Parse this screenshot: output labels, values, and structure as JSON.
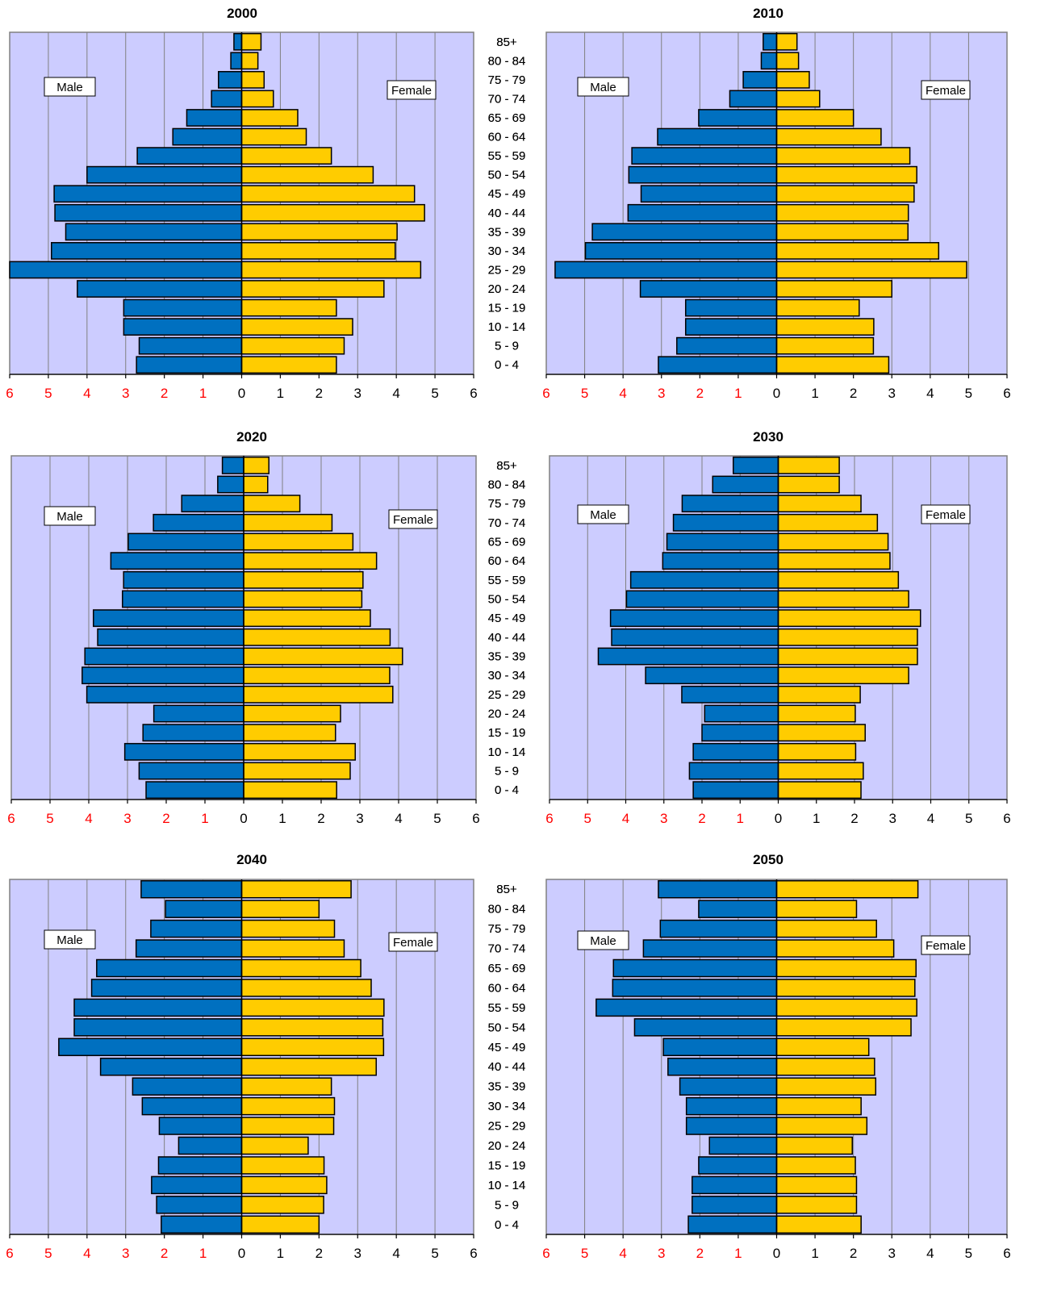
{
  "colors": {
    "plot_bg": "#ccccff",
    "male": "#0070c0",
    "female": "#ffcc00",
    "grid": "#808080",
    "neg_tick": "#ff0000",
    "pos_tick": "#000000"
  },
  "chart_data": [
    {
      "type": "bar",
      "title": "2000",
      "categories": [
        "85+",
        "80 - 84",
        "75 - 79",
        "70 - 74",
        "65 - 69",
        "60 - 64",
        "55 - 59",
        "50 - 54",
        "45 - 49",
        "40 - 44",
        "35 - 39",
        "30 - 34",
        "25 - 29",
        "20 - 24",
        "15 - 19",
        "10 - 14",
        "5 - 9",
        "0 - 4"
      ],
      "series": [
        {
          "name": "Male",
          "values": [
            0.2,
            0.28,
            0.6,
            0.78,
            1.42,
            1.78,
            2.7,
            4.0,
            4.85,
            4.83,
            4.55,
            4.92,
            6.0,
            4.25,
            3.05,
            3.05,
            2.65,
            2.72
          ]
        },
        {
          "name": "Female",
          "values": [
            0.5,
            0.42,
            0.58,
            0.82,
            1.45,
            1.67,
            2.32,
            3.4,
            4.47,
            4.73,
            4.02,
            3.97,
            4.63,
            3.68,
            2.45,
            2.87,
            2.65,
            2.45
          ]
        }
      ],
      "xlim": [
        -6,
        6
      ],
      "xticks": [
        "6",
        "5",
        "4",
        "3",
        "2",
        "1",
        "0",
        "1",
        "2",
        "3",
        "4",
        "5",
        "6"
      ],
      "grid": true,
      "legend": {
        "male": "Male",
        "female": "Female"
      }
    },
    {
      "type": "bar",
      "title": "2010",
      "categories": [
        "85+",
        "80 - 84",
        "75 - 79",
        "70 - 74",
        "65 - 69",
        "60 - 64",
        "55 - 59",
        "50 - 54",
        "45 - 49",
        "40 - 44",
        "35 - 39",
        "30 - 34",
        "25 - 29",
        "20 - 24",
        "15 - 19",
        "10 - 14",
        "5 - 9",
        "0 - 4"
      ],
      "series": [
        {
          "name": "Male",
          "values": [
            0.35,
            0.4,
            0.87,
            1.22,
            2.03,
            3.1,
            3.77,
            3.85,
            3.53,
            3.87,
            4.8,
            4.98,
            5.77,
            3.55,
            2.37,
            2.37,
            2.6,
            3.08
          ]
        },
        {
          "name": "Female",
          "values": [
            0.53,
            0.57,
            0.85,
            1.12,
            2.0,
            2.72,
            3.47,
            3.65,
            3.58,
            3.43,
            3.42,
            4.22,
            4.95,
            3.0,
            2.15,
            2.53,
            2.52,
            2.92
          ]
        }
      ],
      "xlim": [
        -6,
        6
      ],
      "xticks": [
        "6",
        "5",
        "4",
        "3",
        "2",
        "1",
        "0",
        "1",
        "2",
        "3",
        "4",
        "5",
        "6"
      ],
      "grid": true,
      "legend": {
        "male": "Male",
        "female": "Female"
      }
    },
    {
      "type": "bar",
      "title": "2020",
      "categories": [
        "85+",
        "80 - 84",
        "75 - 79",
        "70 - 74",
        "65 - 69",
        "60 - 64",
        "55 - 59",
        "50 - 54",
        "45 - 49",
        "40 - 44",
        "35 - 39",
        "30 - 34",
        "25 - 29",
        "20 - 24",
        "15 - 19",
        "10 - 14",
        "5 - 9",
        "0 - 4"
      ],
      "series": [
        {
          "name": "Male",
          "values": [
            0.55,
            0.67,
            1.6,
            2.33,
            2.98,
            3.43,
            3.1,
            3.13,
            3.88,
            3.77,
            4.1,
            4.17,
            4.05,
            2.32,
            2.6,
            3.07,
            2.7,
            2.52
          ]
        },
        {
          "name": "Female",
          "values": [
            0.65,
            0.62,
            1.45,
            2.28,
            2.82,
            3.43,
            3.08,
            3.05,
            3.27,
            3.78,
            4.1,
            3.77,
            3.85,
            2.5,
            2.37,
            2.88,
            2.75,
            2.4
          ]
        }
      ],
      "xlim": [
        -6,
        6
      ],
      "xticks": [
        "6",
        "5",
        "4",
        "3",
        "2",
        "1",
        "0",
        "1",
        "2",
        "3",
        "4",
        "5",
        "6"
      ],
      "grid": true,
      "legend": {
        "male": "Male",
        "female": "Female"
      }
    },
    {
      "type": "bar",
      "title": "2030",
      "categories": [
        "85+",
        "80 - 84",
        "75 - 79",
        "70 - 74",
        "65 - 69",
        "60 - 64",
        "55 - 59",
        "50 - 54",
        "45 - 49",
        "40 - 44",
        "35 - 39",
        "30 - 34",
        "25 - 29",
        "20 - 24",
        "15 - 19",
        "10 - 14",
        "5 - 9",
        "0 - 4"
      ],
      "series": [
        {
          "name": "Male",
          "values": [
            1.18,
            1.72,
            2.52,
            2.75,
            2.92,
            3.03,
            3.87,
            3.98,
            4.4,
            4.37,
            4.72,
            3.48,
            2.53,
            1.93,
            2.0,
            2.23,
            2.33,
            2.23
          ]
        },
        {
          "name": "Female",
          "values": [
            1.6,
            1.6,
            2.17,
            2.6,
            2.88,
            2.93,
            3.15,
            3.42,
            3.73,
            3.65,
            3.65,
            3.42,
            2.15,
            2.02,
            2.28,
            2.03,
            2.23,
            2.17
          ]
        }
      ],
      "xlim": [
        -6,
        6
      ],
      "xticks": [
        "6",
        "5",
        "4",
        "3",
        "2",
        "1",
        "0",
        "1",
        "2",
        "3",
        "4",
        "5",
        "6"
      ],
      "grid": true,
      "legend": {
        "male": "Male",
        "female": "Female"
      }
    },
    {
      "type": "bar",
      "title": "2040",
      "categories": [
        "85+",
        "80 - 84",
        "75 - 79",
        "70 - 74",
        "65 - 69",
        "60 - 64",
        "55 - 59",
        "50 - 54",
        "45 - 49",
        "40 - 44",
        "35 - 39",
        "30 - 34",
        "25 - 29",
        "20 - 24",
        "15 - 19",
        "10 - 14",
        "5 - 9",
        "0 - 4"
      ],
      "series": [
        {
          "name": "Male",
          "values": [
            2.6,
            1.97,
            2.35,
            2.73,
            3.75,
            3.88,
            4.33,
            4.33,
            4.73,
            3.65,
            2.82,
            2.57,
            2.13,
            1.63,
            2.15,
            2.33,
            2.2,
            2.08
          ]
        },
        {
          "name": "Female",
          "values": [
            2.83,
            2.0,
            2.4,
            2.65,
            3.08,
            3.35,
            3.68,
            3.65,
            3.67,
            3.48,
            2.32,
            2.4,
            2.38,
            1.72,
            2.13,
            2.2,
            2.12,
            2.0
          ]
        }
      ],
      "xlim": [
        -6,
        6
      ],
      "xticks": [
        "6",
        "5",
        "4",
        "3",
        "2",
        "1",
        "0",
        "1",
        "2",
        "3",
        "4",
        "5",
        "6"
      ],
      "grid": true,
      "legend": {
        "male": "Male",
        "female": "Female"
      }
    },
    {
      "type": "bar",
      "title": "2050",
      "categories": [
        "85+",
        "80 - 84",
        "75 - 79",
        "70 - 74",
        "65 - 69",
        "60 - 64",
        "55 - 59",
        "50 - 54",
        "45 - 49",
        "40 - 44",
        "35 - 39",
        "30 - 34",
        "25 - 29",
        "20 - 24",
        "15 - 19",
        "10 - 14",
        "5 - 9",
        "0 - 4"
      ],
      "series": [
        {
          "name": "Male",
          "values": [
            3.08,
            2.03,
            3.03,
            3.47,
            4.25,
            4.27,
            4.7,
            3.7,
            2.95,
            2.83,
            2.52,
            2.35,
            2.35,
            1.75,
            2.03,
            2.2,
            2.2,
            2.3
          ]
        },
        {
          "name": "Female",
          "values": [
            3.68,
            2.08,
            2.6,
            3.05,
            3.63,
            3.6,
            3.65,
            3.5,
            2.4,
            2.55,
            2.58,
            2.2,
            2.35,
            1.97,
            2.05,
            2.08,
            2.08,
            2.2
          ]
        }
      ],
      "xlim": [
        -6,
        6
      ],
      "xticks": [
        "6",
        "5",
        "4",
        "3",
        "2",
        "1",
        "0",
        "1",
        "2",
        "3",
        "4",
        "5",
        "6"
      ],
      "grid": true,
      "legend": {
        "male": "Male",
        "female": "Female"
      }
    }
  ]
}
